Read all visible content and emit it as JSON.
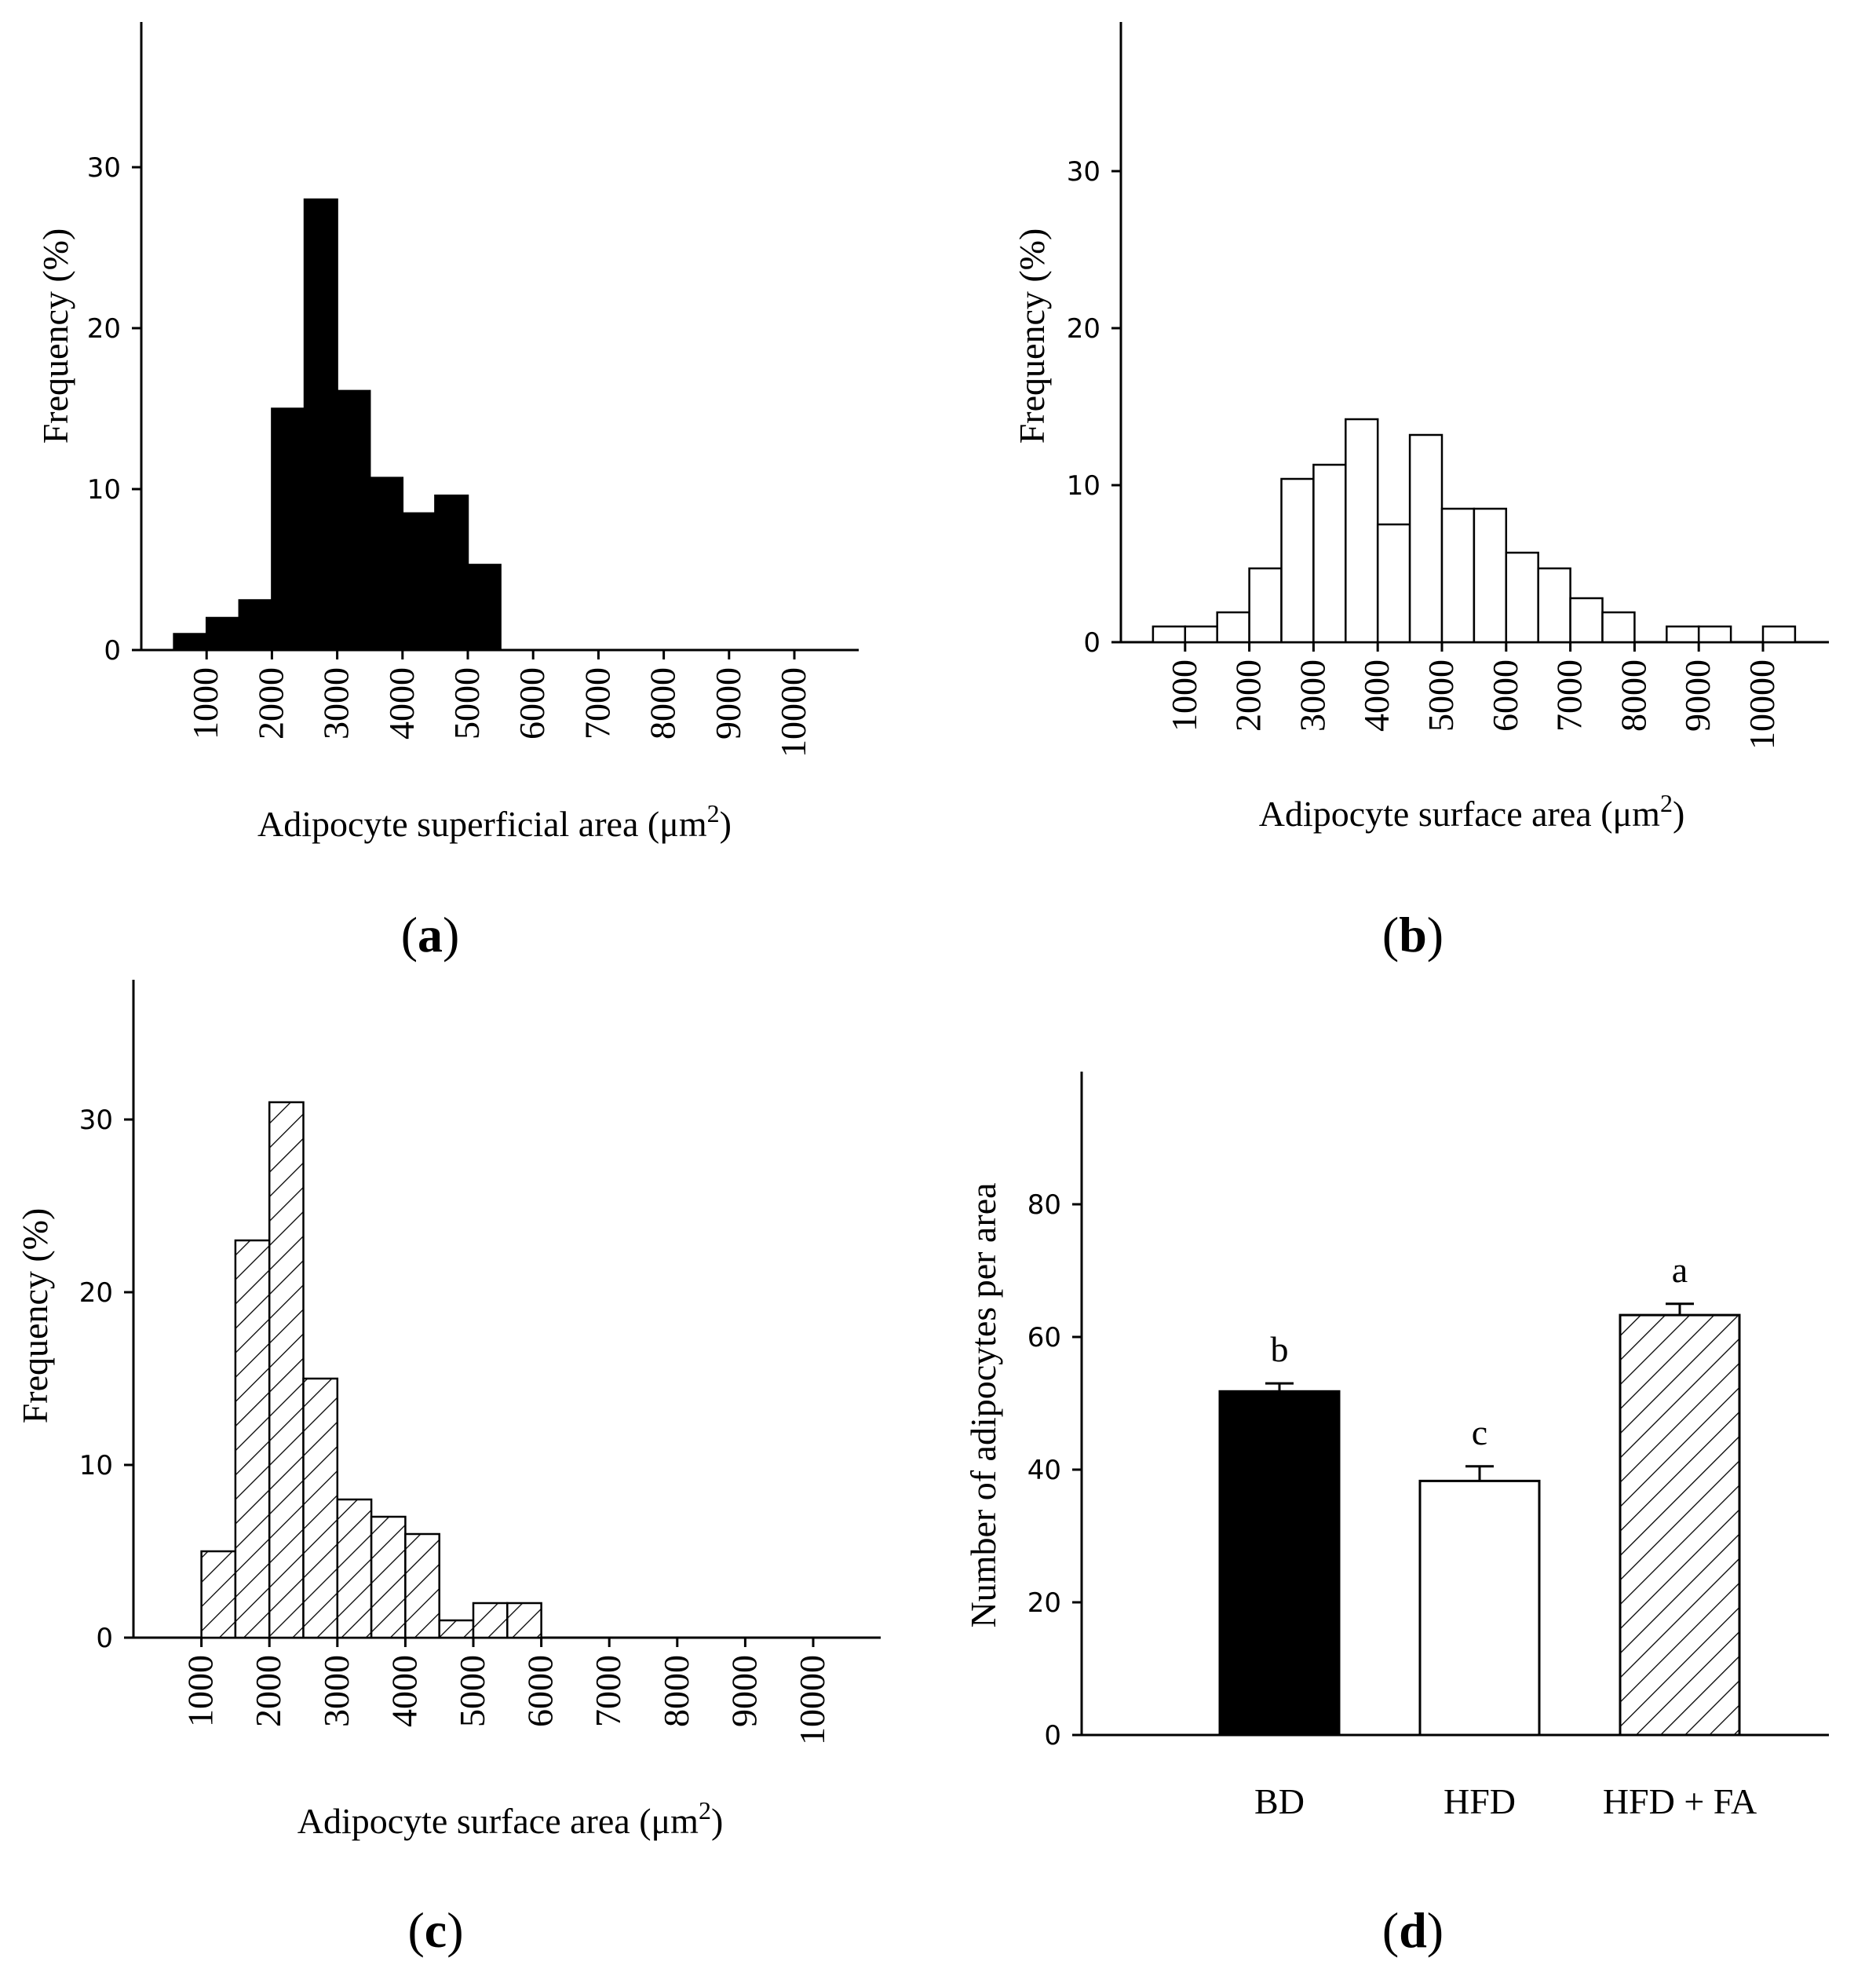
{
  "colors": {
    "ink": "#000000",
    "paper": "#ffffff"
  },
  "chart_data": [
    {
      "type": "bar",
      "panel": "a",
      "fill": "solid",
      "xlabel": "Adipocyte superficial area (μm",
      "xlabel_sup": "2",
      "xlabel_close": ")",
      "ylabel": "Frequency (%)",
      "ylim": [
        0,
        38.8
      ],
      "yticks": [
        "0",
        "10",
        "20",
        "30"
      ],
      "xlim": [
        0,
        11000
      ],
      "xticks": [
        "1000",
        "2000",
        "3000",
        "4000",
        "5000",
        "6000",
        "7000",
        "8000",
        "9000",
        "10000"
      ],
      "bin_width": 500,
      "bins_start": [
        500,
        1000,
        1500,
        2000,
        2500,
        3000,
        3500,
        4000,
        4500,
        5000
      ],
      "values": [
        1,
        2,
        3.1,
        15,
        28,
        16.1,
        10.7,
        8.5,
        9.6,
        5.3
      ]
    },
    {
      "type": "bar",
      "panel": "b",
      "fill": "open",
      "xlabel": "Adipocyte surface area (μm",
      "xlabel_sup": "2",
      "xlabel_close": ")",
      "ylabel": "Frequency (%)",
      "ylim": [
        0,
        39
      ],
      "yticks": [
        "0",
        "10",
        "20",
        "30"
      ],
      "xlim": [
        0,
        11000
      ],
      "xticks": [
        "1000",
        "2000",
        "3000",
        "4000",
        "5000",
        "6000",
        "7000",
        "8000",
        "9000",
        "10000"
      ],
      "bin_width": 500,
      "bins_start": [
        500,
        1000,
        1500,
        2000,
        2500,
        3000,
        3500,
        4000,
        4500,
        5000,
        5500,
        6000,
        6500,
        7000,
        7500,
        8000,
        8500,
        9000,
        9500,
        10000
      ],
      "values": [
        1,
        1,
        1.9,
        4.7,
        10.4,
        11.3,
        14.2,
        7.5,
        13.2,
        8.5,
        8.5,
        5.7,
        4.7,
        2.8,
        1.9,
        0,
        1,
        1,
        0,
        1
      ]
    },
    {
      "type": "bar",
      "panel": "c",
      "fill": "hatched",
      "xlabel": "Adipocyte surface area  (μm",
      "xlabel_sup": "2",
      "xlabel_close": ")",
      "ylabel": "Frequency (%)",
      "ylim": [
        0,
        37.5
      ],
      "yticks": [
        "0",
        "10",
        "20",
        "30"
      ],
      "xlim": [
        0,
        11000
      ],
      "xticks": [
        "1000",
        "2000",
        "3000",
        "4000",
        "5000",
        "6000",
        "7000",
        "8000",
        "9000",
        "10000"
      ],
      "bin_width": 500,
      "bins_start": [
        1000,
        1500,
        2000,
        2500,
        3000,
        3500,
        4000,
        4500,
        5000,
        5500
      ],
      "values": [
        5,
        23,
        31,
        15,
        8,
        7,
        6,
        1,
        2,
        2
      ]
    },
    {
      "type": "bar",
      "panel": "d",
      "ylabel": "Number of adipocytes per area",
      "ylim": [
        0,
        100
      ],
      "yticks": [
        "0",
        "20",
        "40",
        "60",
        "80"
      ],
      "categories": [
        "BD",
        "HFD",
        "HFD + FA"
      ],
      "values": [
        51.8,
        38.3,
        63.3
      ],
      "errors": [
        1.2,
        2.2,
        1.7
      ],
      "fills": [
        "solid",
        "open",
        "hatched"
      ],
      "significance": [
        "b",
        "c",
        "a"
      ]
    }
  ],
  "panels": {
    "a": "a",
    "b": "b",
    "c": "c",
    "d": "d"
  }
}
